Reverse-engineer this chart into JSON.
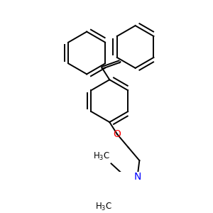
{
  "bg_color": "#ffffff",
  "bond_color": "#000000",
  "O_color": "#ff0000",
  "N_color": "#0000ff",
  "bond_lw": 1.4,
  "font_size": 8.5,
  "fig_size": [
    3.0,
    3.0
  ],
  "dpi": 100
}
